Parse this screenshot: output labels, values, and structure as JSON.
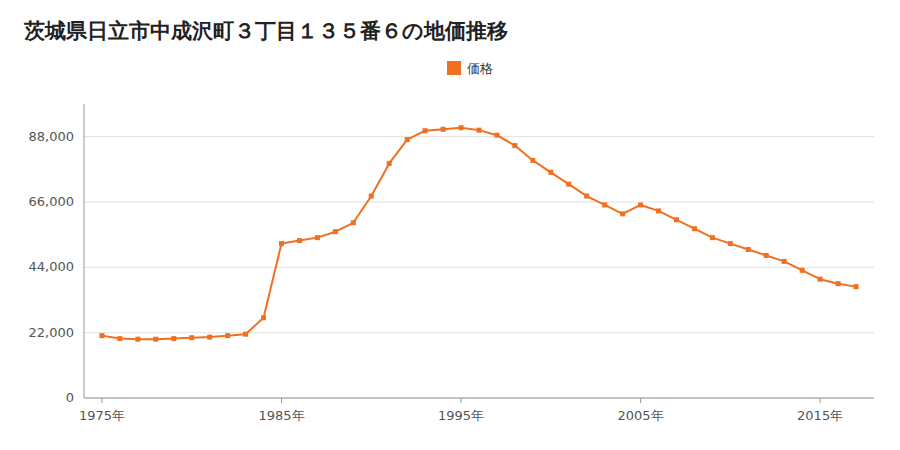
{
  "chart_data": {
    "type": "line",
    "title": "茨城県日立市中成沢町３丁目１３５番６の地価推移",
    "x": [
      1975,
      1976,
      1977,
      1978,
      1979,
      1980,
      1981,
      1982,
      1983,
      1984,
      1985,
      1986,
      1987,
      1988,
      1989,
      1990,
      1991,
      1992,
      1993,
      1994,
      1995,
      1996,
      1997,
      1998,
      1999,
      2000,
      2001,
      2002,
      2003,
      2004,
      2005,
      2006,
      2007,
      2008,
      2009,
      2010,
      2011,
      2012,
      2013,
      2014,
      2015,
      2016,
      2017
    ],
    "series": [
      {
        "name": "価格",
        "color": "#f07020",
        "marker": "square",
        "values": [
          21000,
          20000,
          19800,
          19800,
          20000,
          20300,
          20500,
          21000,
          21500,
          27000,
          52000,
          53000,
          54000,
          56000,
          59000,
          68000,
          79000,
          87000,
          90000,
          90500,
          91000,
          90200,
          88500,
          85000,
          80000,
          76000,
          72000,
          68000,
          65000,
          62000,
          65000,
          63000,
          60000,
          57000,
          54000,
          52000,
          50000,
          48000,
          46000,
          43000,
          40000,
          38500,
          37500
        ]
      }
    ],
    "xlim": [
      1974,
      2018
    ],
    "xticks": [
      {
        "value": 1975,
        "label": "1975年"
      },
      {
        "value": 1985,
        "label": "1985年"
      },
      {
        "value": 1995,
        "label": "1995年"
      },
      {
        "value": 2005,
        "label": "2005年"
      },
      {
        "value": 2015,
        "label": "2015年"
      }
    ],
    "ylim": [
      0,
      99000
    ],
    "yticks": [
      0,
      {
        "value": 22000,
        "label": "22,000"
      },
      {
        "value": 44000,
        "label": "44,000"
      },
      {
        "value": 66000,
        "label": "66,000"
      },
      {
        "value": 88000,
        "label": "88,000"
      }
    ],
    "grid": true,
    "legend": "top"
  }
}
